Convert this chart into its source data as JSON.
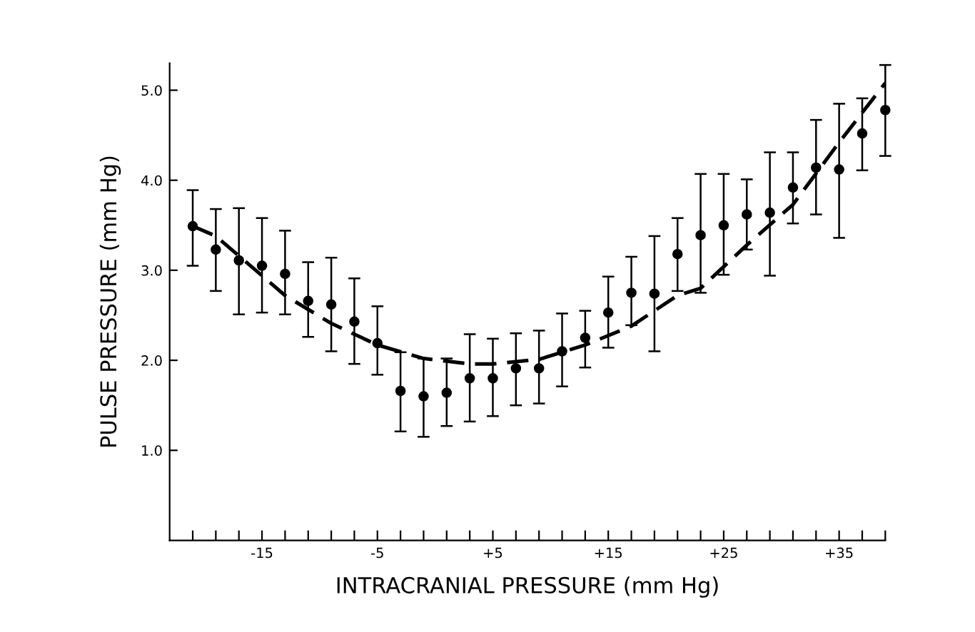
{
  "chart_data": {
    "type": "scatter",
    "xlabel": "INTRACRANIAL PRESSURE (mm Hg)",
    "ylabel": "PULSE PRESSURE (mm Hg)",
    "x": [
      -21,
      -19,
      -17,
      -15,
      -13,
      -11,
      -9,
      -7,
      -5,
      -3,
      -1,
      1,
      3,
      5,
      7,
      9,
      11,
      13,
      15,
      17,
      19,
      21,
      23,
      25,
      27,
      29,
      31,
      33,
      35,
      37,
      39
    ],
    "series": [
      {
        "color": "#000000",
        "marker": "circle",
        "values": [
          3.49,
          3.23,
          3.11,
          3.05,
          2.96,
          2.66,
          2.62,
          2.43,
          2.19,
          1.66,
          1.6,
          1.64,
          1.8,
          1.8,
          1.91,
          1.91,
          2.1,
          2.25,
          2.53,
          2.75,
          2.74,
          3.18,
          3.39,
          3.5,
          3.62,
          3.64,
          3.92,
          4.14,
          4.12,
          4.52,
          4.78
        ],
        "errors": [
          [
            3.05,
            3.89
          ],
          [
            2.77,
            3.68
          ],
          [
            2.51,
            3.69
          ],
          [
            2.53,
            3.58
          ],
          [
            2.51,
            3.44
          ],
          [
            2.26,
            3.09
          ],
          [
            2.1,
            3.14
          ],
          [
            1.96,
            2.91
          ],
          [
            1.84,
            2.6
          ],
          [
            1.21,
            2.09
          ],
          [
            1.15,
            2.02
          ],
          [
            1.27,
            2.02
          ],
          [
            1.32,
            2.29
          ],
          [
            1.38,
            2.24
          ],
          [
            1.5,
            2.3
          ],
          [
            1.52,
            2.33
          ],
          [
            1.71,
            2.52
          ],
          [
            1.92,
            2.55
          ],
          [
            2.14,
            2.93
          ],
          [
            2.39,
            3.15
          ],
          [
            2.1,
            3.38
          ],
          [
            2.77,
            3.58
          ],
          [
            2.75,
            4.07
          ],
          [
            2.95,
            4.07
          ],
          [
            3.23,
            4.01
          ],
          [
            2.94,
            4.31
          ],
          [
            3.52,
            4.31
          ],
          [
            3.62,
            4.67
          ],
          [
            3.36,
            4.85
          ],
          [
            4.11,
            4.91
          ],
          [
            4.27,
            5.28
          ]
        ]
      },
      {
        "type": "line",
        "color": "#000000",
        "line_style": "dashed",
        "marker": "none",
        "x": [
          -21,
          -19,
          -13,
          -9,
          -5,
          -1,
          3,
          5,
          9,
          13,
          17,
          21,
          23,
          27,
          31,
          35,
          39
        ],
        "values": [
          3.49,
          3.38,
          2.72,
          2.41,
          2.17,
          2.02,
          1.96,
          1.96,
          2.01,
          2.17,
          2.38,
          2.72,
          2.8,
          3.28,
          3.73,
          4.42,
          5.08
        ]
      }
    ],
    "xlim": [
      -23,
      39
    ],
    "ylim": [
      0,
      5.3
    ],
    "xticks": [
      {
        "value": -21,
        "label": null
      },
      {
        "value": -19,
        "label": null
      },
      {
        "value": -17,
        "label": null
      },
      {
        "value": -15,
        "label": "-15"
      },
      {
        "value": -13,
        "label": null
      },
      {
        "value": -11,
        "label": null
      },
      {
        "value": -9,
        "label": null
      },
      {
        "value": -7,
        "label": null
      },
      {
        "value": -5,
        "label": "-5"
      },
      {
        "value": -3,
        "label": null
      },
      {
        "value": -1,
        "label": null
      },
      {
        "value": 1,
        "label": null
      },
      {
        "value": 3,
        "label": null
      },
      {
        "value": 5,
        "label": "+5"
      },
      {
        "value": 7,
        "label": null
      },
      {
        "value": 9,
        "label": null
      },
      {
        "value": 11,
        "label": null
      },
      {
        "value": 13,
        "label": null
      },
      {
        "value": 15,
        "label": "+15"
      },
      {
        "value": 17,
        "label": null
      },
      {
        "value": 19,
        "label": null
      },
      {
        "value": 21,
        "label": null
      },
      {
        "value": 23,
        "label": null
      },
      {
        "value": 25,
        "label": "+25"
      },
      {
        "value": 27,
        "label": null
      },
      {
        "value": 29,
        "label": null
      },
      {
        "value": 31,
        "label": null
      },
      {
        "value": 33,
        "label": null
      },
      {
        "value": 35,
        "label": "+35"
      },
      {
        "value": 37,
        "label": null
      },
      {
        "value": 39,
        "label": null
      }
    ],
    "yticks": [
      {
        "value": 1,
        "label": "1.0"
      },
      {
        "value": 2,
        "label": "2.0"
      },
      {
        "value": 3,
        "label": "3.0"
      },
      {
        "value": 4,
        "label": "4.0"
      },
      {
        "value": 5,
        "label": "5.0"
      }
    ],
    "grid": false,
    "legend": false
  }
}
